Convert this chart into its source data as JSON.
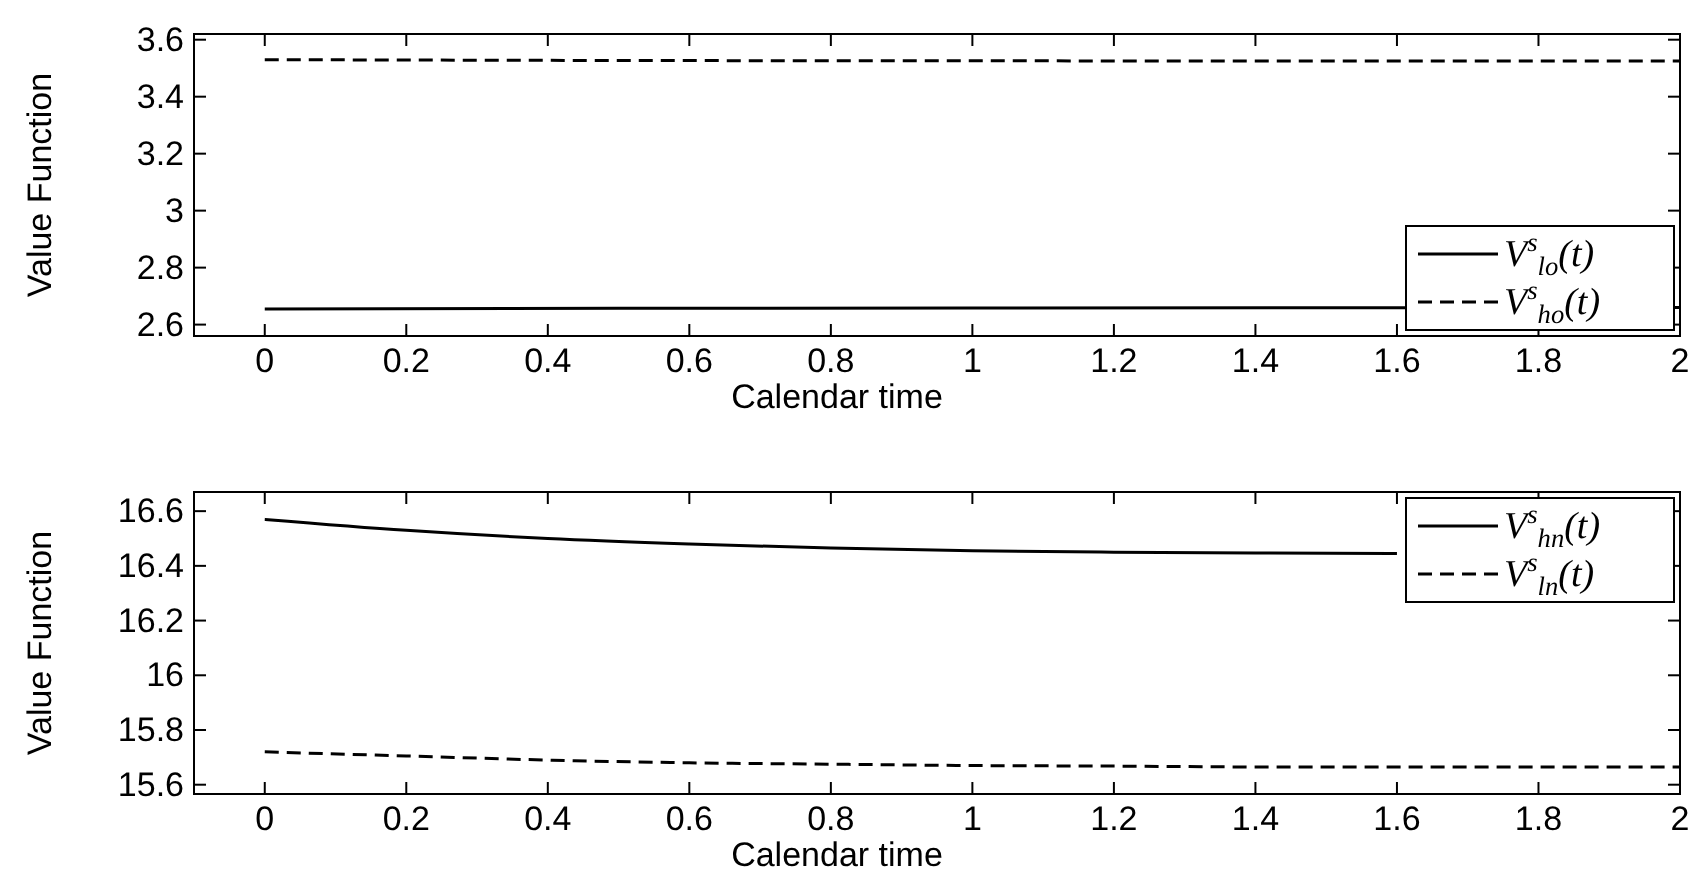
{
  "chart_data": [
    {
      "type": "line",
      "xlabel": "Calendar time",
      "ylabel": "Value Function",
      "x": [
        0,
        0.5,
        1,
        1.5,
        2
      ],
      "xlim": [
        -0.1,
        2
      ],
      "ylim": [
        2.56,
        3.62
      ],
      "xticks": [
        0,
        0.2,
        0.4,
        0.6,
        0.8,
        1,
        1.2,
        1.4,
        1.6,
        1.8,
        2
      ],
      "yticks": [
        2.6,
        2.8,
        {
          "value": 3,
          "label": "3"
        },
        3.2,
        3.4,
        3.6
      ],
      "legend": "bottom right",
      "grid": false,
      "series": [
        {
          "name": "V$^{s}$$_{lo}$(t)",
          "color": "#000000",
          "line_style": "solid",
          "values": [
            2.655,
            2.657,
            2.658,
            2.659,
            2.66
          ]
        },
        {
          "name": "V$^{s}$$_{ho}$(t)",
          "color": "#000000",
          "line_style": "dashed",
          "values": [
            3.53,
            3.527,
            3.526,
            3.525,
            3.525
          ]
        }
      ]
    },
    {
      "type": "line",
      "xlabel": "Calendar time",
      "ylabel": "Value Function",
      "x": [
        0,
        0.2,
        0.4,
        0.6,
        0.8,
        1,
        1.2,
        1.4,
        1.6,
        1.8,
        2
      ],
      "xlim": [
        -0.1,
        2
      ],
      "ylim": [
        15.566,
        16.67
      ],
      "xticks": [
        0,
        0.2,
        0.4,
        0.6,
        0.8,
        1,
        1.2,
        1.4,
        1.6,
        1.8,
        2
      ],
      "yticks": [
        15.6,
        15.8,
        {
          "value": 16,
          "label": "16"
        },
        16.2,
        16.4,
        16.6
      ],
      "legend": "top right",
      "grid": false,
      "series": [
        {
          "name": "V$^{s}$$_{hn}$(t)",
          "color": "#000000",
          "line_style": "solid",
          "values": [
            16.57,
            16.53,
            16.5,
            16.48,
            16.465,
            16.455,
            16.45,
            16.447,
            16.445,
            null,
            null
          ]
        },
        {
          "name": "V$^{s}$$_{ln}$(t)",
          "color": "#000000",
          "line_style": "dashed",
          "values": [
            15.72,
            15.705,
            15.69,
            15.68,
            15.675,
            15.67,
            15.668,
            15.665,
            15.665,
            15.665,
            15.665
          ]
        }
      ]
    }
  ]
}
